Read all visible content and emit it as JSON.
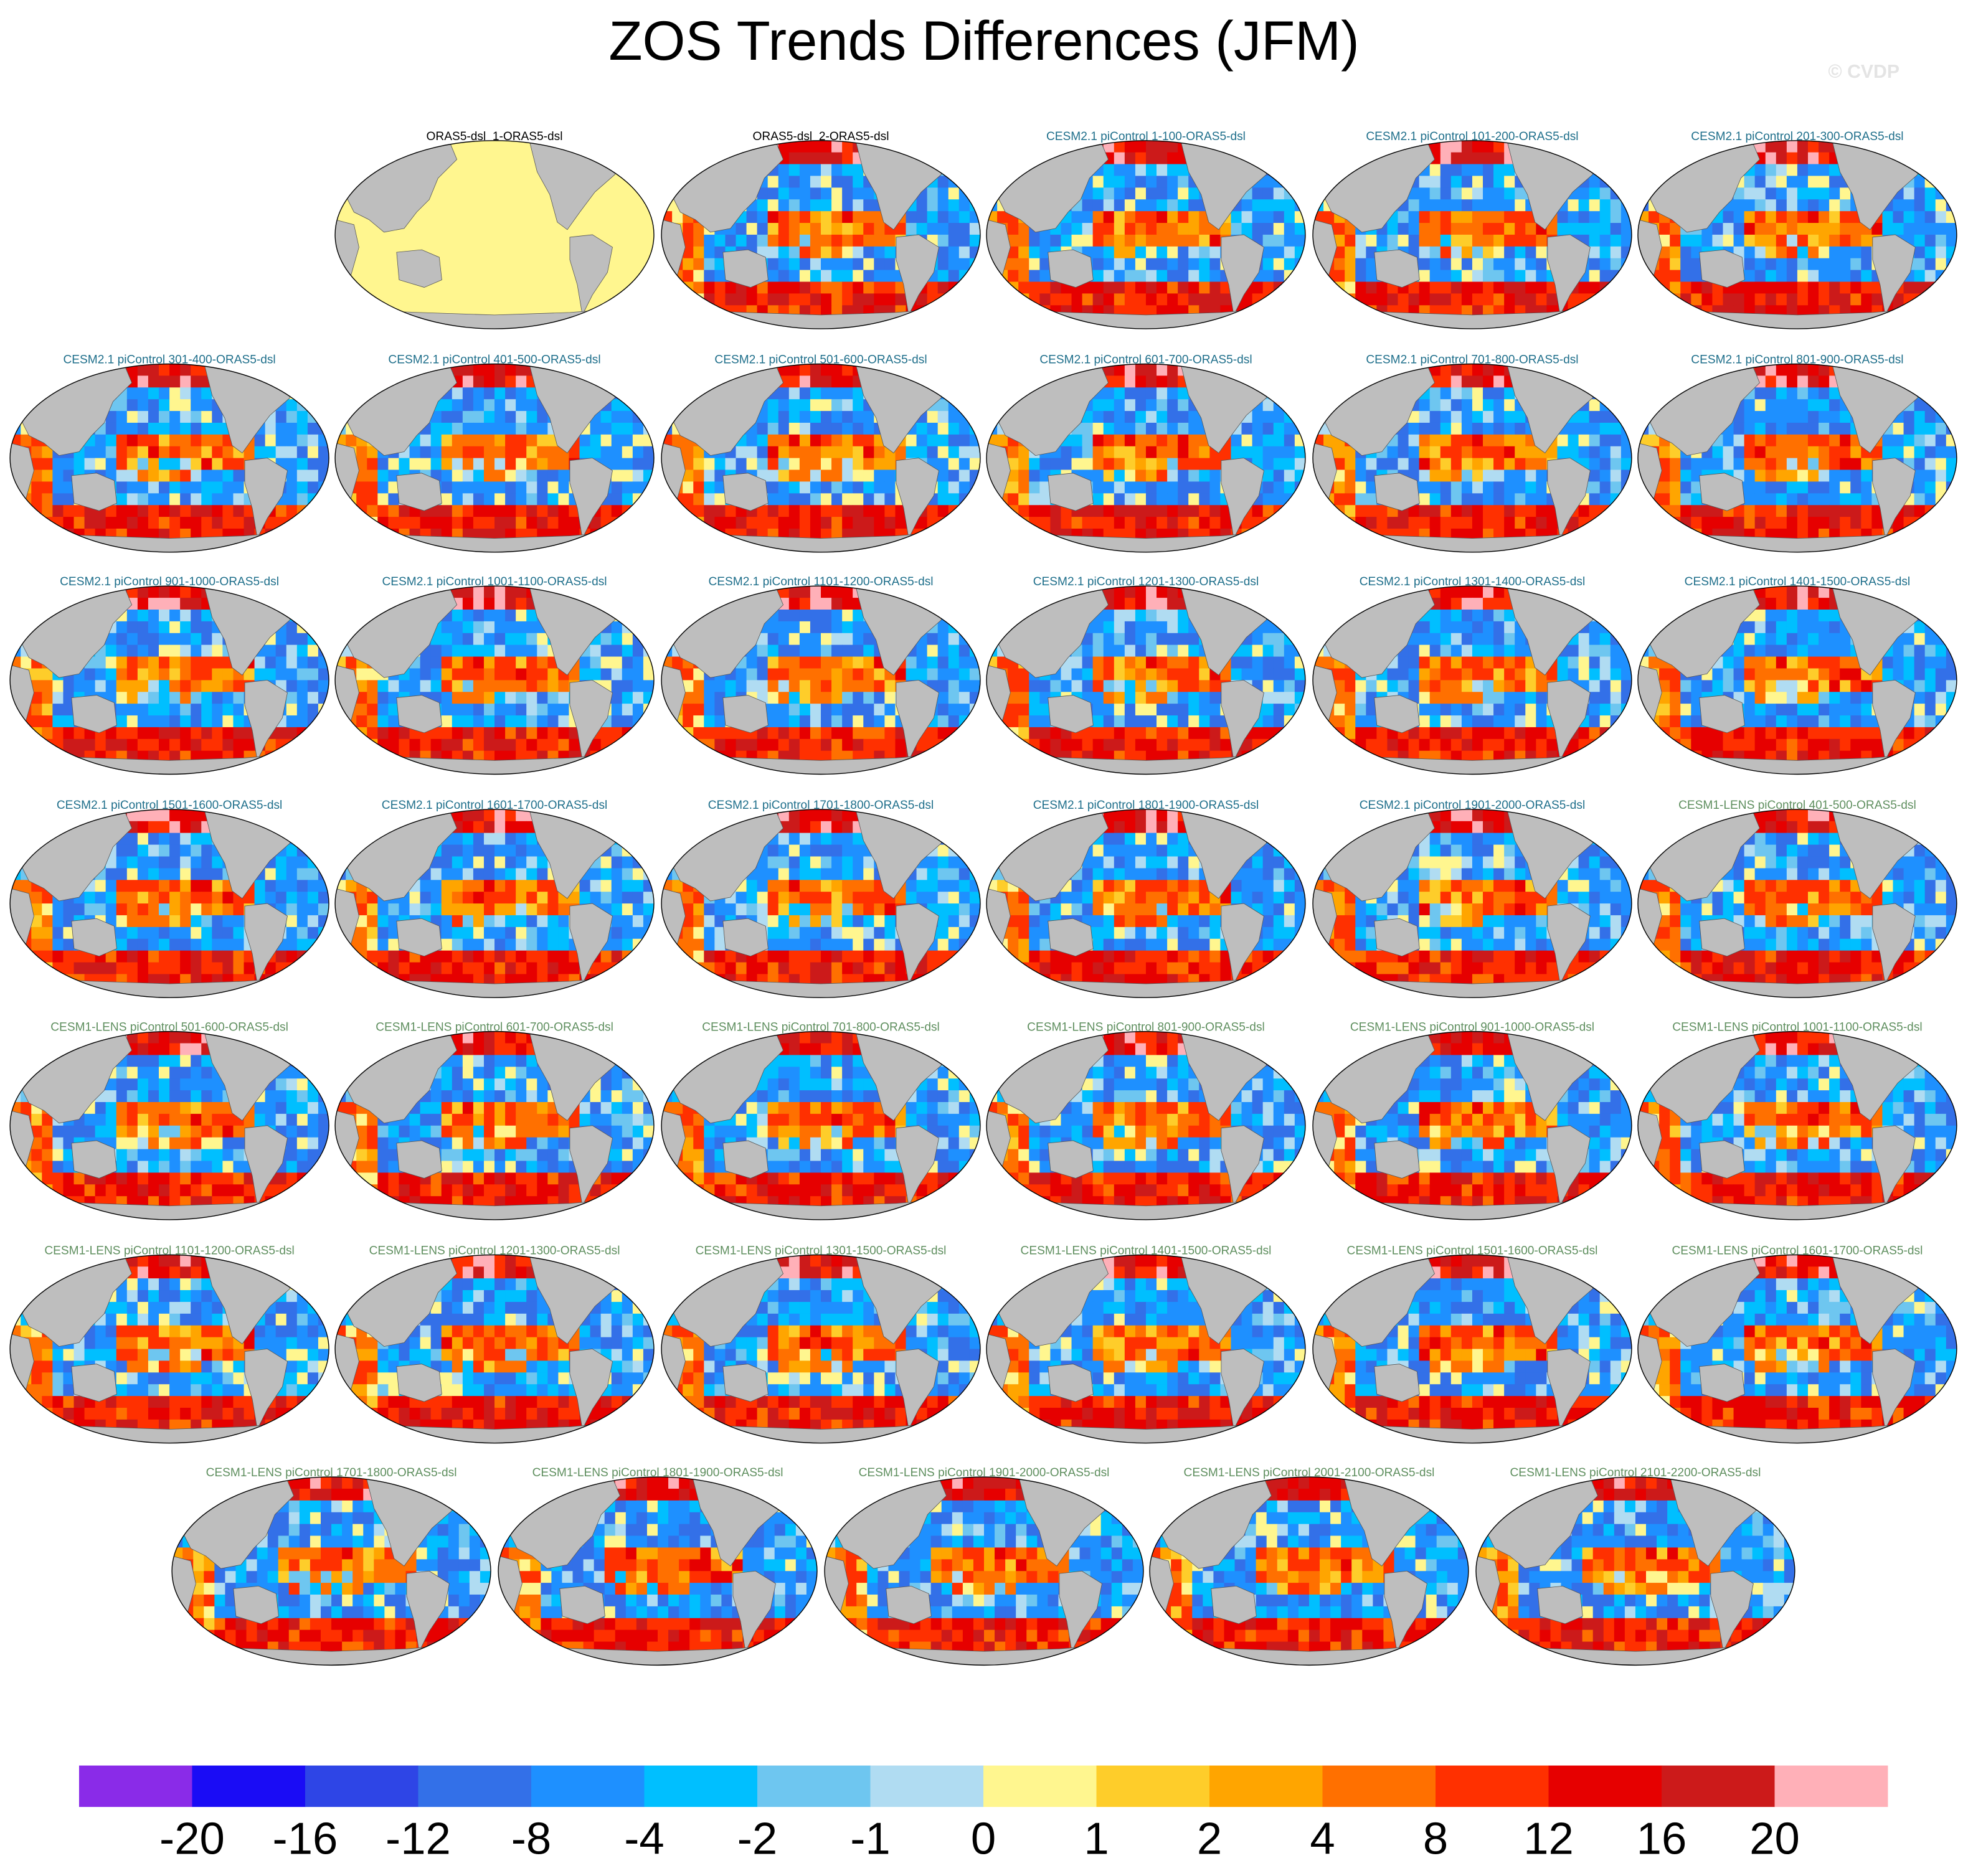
{
  "title": "ZOS Trends Differences (JFM)",
  "watermark": "© CVDP",
  "panels": [
    {
      "title": "ORAS5-dsl_1-ORAS5-dsl",
      "color": "#000000"
    },
    {
      "title": "ORAS5-dsl_2-ORAS5-dsl",
      "color": "#000000"
    },
    {
      "title": "CESM2.1 piControl 1-100-ORAS5-dsl",
      "color": "#1f6f8b"
    },
    {
      "title": "CESM2.1 piControl 101-200-ORAS5-dsl",
      "color": "#1f6f8b"
    },
    {
      "title": "CESM2.1 piControl 201-300-ORAS5-dsl",
      "color": "#1f6f8b"
    },
    {
      "title": "CESM2.1 piControl 301-400-ORAS5-dsl",
      "color": "#1f6f8b"
    },
    {
      "title": "CESM2.1 piControl 401-500-ORAS5-dsl",
      "color": "#1f6f8b"
    },
    {
      "title": "CESM2.1 piControl 501-600-ORAS5-dsl",
      "color": "#1f6f8b"
    },
    {
      "title": "CESM2.1 piControl 601-700-ORAS5-dsl",
      "color": "#1f6f8b"
    },
    {
      "title": "CESM2.1 piControl 701-800-ORAS5-dsl",
      "color": "#1f6f8b"
    },
    {
      "title": "CESM2.1 piControl 801-900-ORAS5-dsl",
      "color": "#1f6f8b"
    },
    {
      "title": "CESM2.1 piControl 901-1000-ORAS5-dsl",
      "color": "#1f6f8b"
    },
    {
      "title": "CESM2.1 piControl 1001-1100-ORAS5-dsl",
      "color": "#1f6f8b"
    },
    {
      "title": "CESM2.1 piControl 1101-1200-ORAS5-dsl",
      "color": "#1f6f8b"
    },
    {
      "title": "CESM2.1 piControl 1201-1300-ORAS5-dsl",
      "color": "#1f6f8b"
    },
    {
      "title": "CESM2.1 piControl 1301-1400-ORAS5-dsl",
      "color": "#1f6f8b"
    },
    {
      "title": "CESM2.1 piControl 1401-1500-ORAS5-dsl",
      "color": "#1f6f8b"
    },
    {
      "title": "CESM2.1 piControl 1501-1600-ORAS5-dsl",
      "color": "#1f6f8b"
    },
    {
      "title": "CESM2.1 piControl 1601-1700-ORAS5-dsl",
      "color": "#1f6f8b"
    },
    {
      "title": "CESM2.1 piControl 1701-1800-ORAS5-dsl",
      "color": "#1f6f8b"
    },
    {
      "title": "CESM2.1 piControl 1801-1900-ORAS5-dsl",
      "color": "#1f6f8b"
    },
    {
      "title": "CESM2.1 piControl 1901-2000-ORAS5-dsl",
      "color": "#1f6f8b"
    },
    {
      "title": "CESM1-LENS piControl 401-500-ORAS5-dsl",
      "color": "#5f8f5f"
    },
    {
      "title": "CESM1-LENS piControl 501-600-ORAS5-dsl",
      "color": "#5f8f5f"
    },
    {
      "title": "CESM1-LENS piControl 601-700-ORAS5-dsl",
      "color": "#5f8f5f"
    },
    {
      "title": "CESM1-LENS piControl 701-800-ORAS5-dsl",
      "color": "#5f8f5f"
    },
    {
      "title": "CESM1-LENS piControl 801-900-ORAS5-dsl",
      "color": "#5f8f5f"
    },
    {
      "title": "CESM1-LENS piControl 901-1000-ORAS5-dsl",
      "color": "#5f8f5f"
    },
    {
      "title": "CESM1-LENS piControl 1001-1100-ORAS5-dsl",
      "color": "#5f8f5f"
    },
    {
      "title": "CESM1-LENS piControl 1101-1200-ORAS5-dsl",
      "color": "#5f8f5f"
    },
    {
      "title": "CESM1-LENS piControl 1201-1300-ORAS5-dsl",
      "color": "#5f8f5f"
    },
    {
      "title": "CESM1-LENS piControl 1301-1500-ORAS5-dsl",
      "color": "#5f8f5f"
    },
    {
      "title": "CESM1-LENS piControl 1401-1500-ORAS5-dsl",
      "color": "#5f8f5f"
    },
    {
      "title": "CESM1-LENS piControl 1501-1600-ORAS5-dsl",
      "color": "#5f8f5f"
    },
    {
      "title": "CESM1-LENS piControl 1601-1700-ORAS5-dsl",
      "color": "#5f8f5f"
    },
    {
      "title": "CESM1-LENS piControl 1701-1800-ORAS5-dsl",
      "color": "#5f8f5f"
    },
    {
      "title": "CESM1-LENS piControl 1801-1900-ORAS5-dsl",
      "color": "#5f8f5f"
    },
    {
      "title": "CESM1-LENS piControl 1901-2000-ORAS5-dsl",
      "color": "#5f8f5f"
    },
    {
      "title": "CESM1-LENS piControl 2001-2100-ORAS5-dsl",
      "color": "#5f8f5f"
    },
    {
      "title": "CESM1-LENS piControl 2101-2200-ORAS5-dsl",
      "color": "#5f8f5f"
    }
  ],
  "colorbar": {
    "colors": [
      "#8a2be8",
      "#1a0cf5",
      "#2e45e6",
      "#3370e8",
      "#1e90ff",
      "#00bfff",
      "#6ec6f0",
      "#b0dcf2",
      "#fff68f",
      "#fecd2a",
      "#ffa500",
      "#ff7000",
      "#ff3000",
      "#e60000",
      "#cc1a1a",
      "#ffb0b8"
    ],
    "labels": [
      -20,
      -16,
      -12,
      -8,
      -4,
      -2,
      -1,
      0,
      1,
      2,
      4,
      8,
      12,
      16,
      20
    ]
  }
}
